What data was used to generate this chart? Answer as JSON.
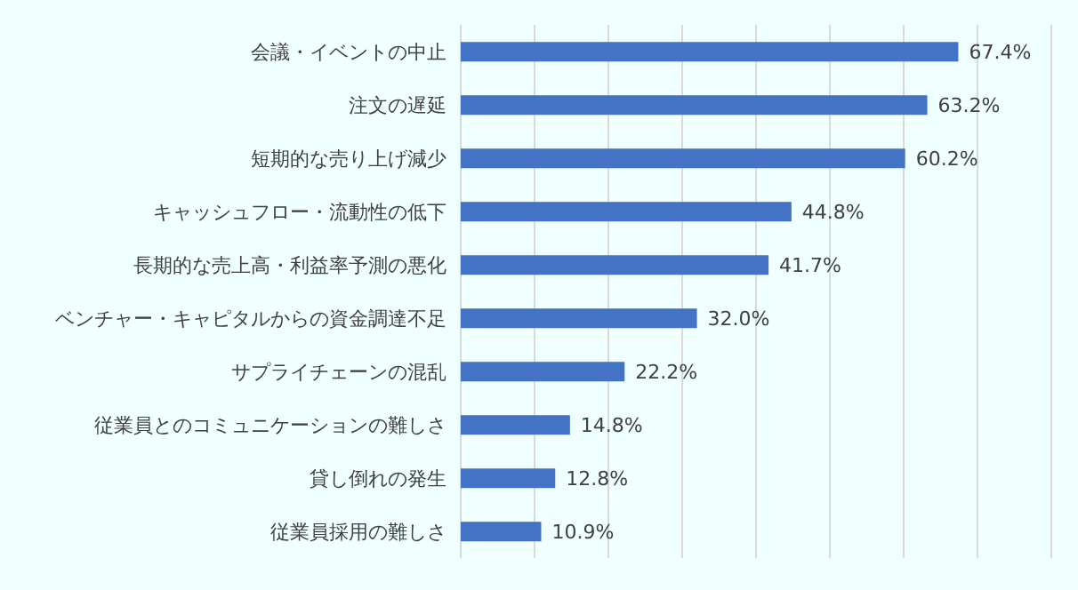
{
  "chart_data": {
    "type": "bar",
    "orientation": "horizontal",
    "categories": [
      "会議・イベントの中止",
      "注文の遅延",
      "短期的な売り上げ減少",
      "キャッシュフロー・流動性の低下",
      "長期的な売上高・利益率予測の悪化",
      "ベンチャー・キャピタルからの資金調達不足",
      "サプライチェーンの混乱",
      "従業員とのコミュニケーションの難しさ",
      "貸し倒れの発生",
      "従業員採用の難しさ"
    ],
    "values": [
      67.4,
      63.2,
      60.2,
      44.8,
      41.7,
      32.0,
      22.2,
      14.8,
      12.8,
      10.9
    ],
    "value_labels": [
      "67.4%",
      "63.2%",
      "60.2%",
      "44.8%",
      "41.7%",
      "32.0%",
      "22.2%",
      "14.8%",
      "12.8%",
      "10.9%"
    ],
    "color": "#4472c4",
    "xlim": [
      0,
      80
    ],
    "xticks": [
      {
        "value": 0,
        "label": null
      },
      {
        "value": 10,
        "label": null
      },
      {
        "value": 20,
        "label": null
      },
      {
        "value": 30,
        "label": null
      },
      {
        "value": 40,
        "label": null
      },
      {
        "value": 50,
        "label": null
      },
      {
        "value": 60,
        "label": null
      },
      {
        "value": 70,
        "label": null
      },
      {
        "value": 80,
        "label": null
      }
    ],
    "grid": "x"
  }
}
